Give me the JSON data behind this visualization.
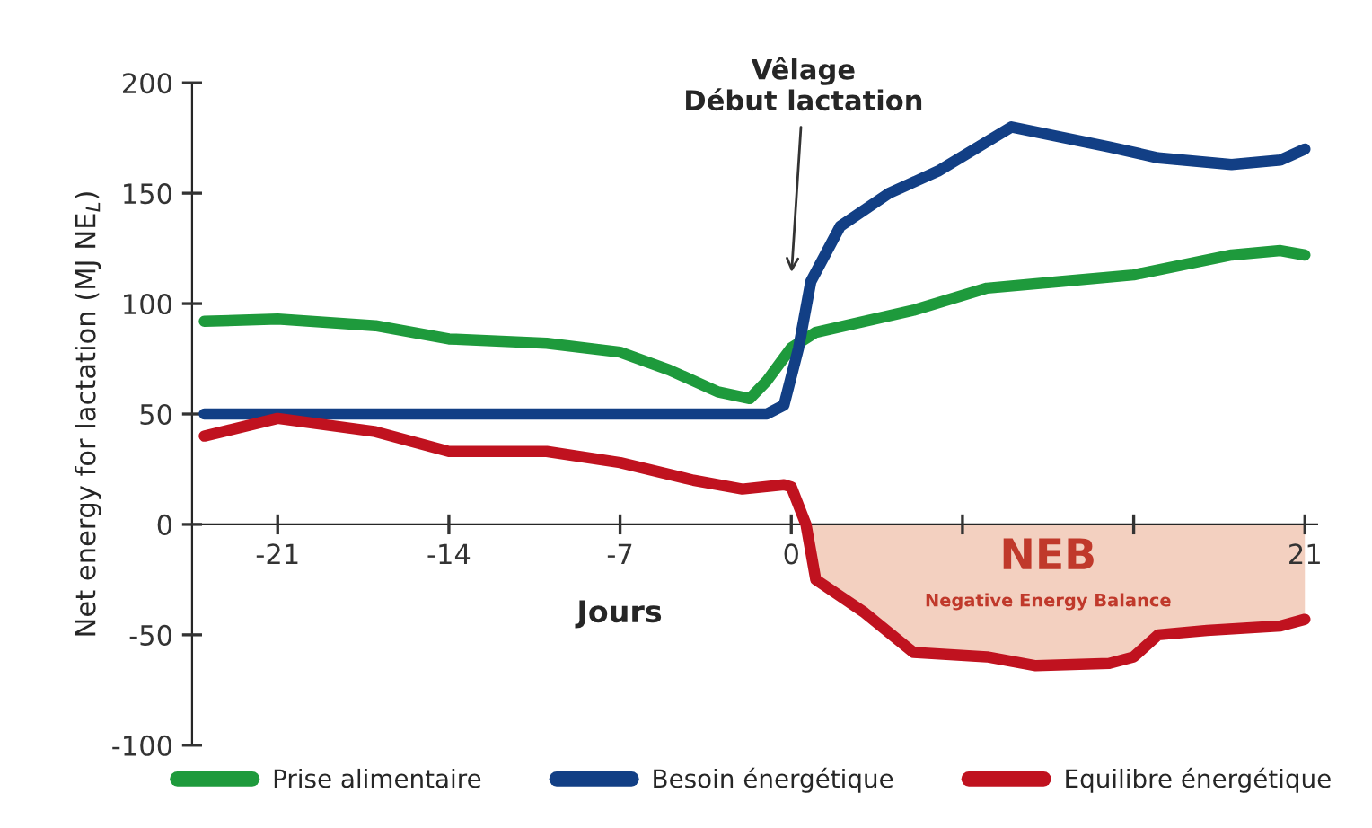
{
  "chart_data": {
    "type": "line",
    "xlabel": "Jours",
    "ylabel": "Net energy for lactation (MJ NE$_{L}$)",
    "xlim": [
      -24.5,
      21.5
    ],
    "xticks": [
      -21,
      -14,
      -7,
      0,
      {
        "value": 7,
        "label": null
      },
      {
        "value": 14,
        "label": null
      },
      21
    ],
    "ylim": [
      -100,
      200
    ],
    "yticks": [
      -100,
      -50,
      0,
      50,
      100,
      150,
      200
    ],
    "grid": false,
    "legend": "bottom",
    "line_style": "solid",
    "marker": "none",
    "series": [
      {
        "type": "area",
        "color": "#f3d0c0",
        "x": [
          0.6,
          1,
          3,
          5,
          8,
          10,
          13,
          14,
          15,
          17,
          20,
          21
        ],
        "values": [
          0,
          -25,
          -40,
          -58,
          -60,
          -64,
          -63,
          -60,
          -50,
          -48,
          -46,
          -43
        ]
      },
      {
        "name": "Prise alimentaire",
        "color": "#1e9a3c",
        "x": [
          -24,
          -21,
          -17,
          -14,
          -10,
          -7,
          -5,
          -3,
          -1.7,
          -1,
          0,
          1,
          5,
          8,
          11,
          14,
          18,
          20,
          21
        ],
        "values": [
          92,
          93,
          90,
          84,
          82,
          78,
          70,
          60,
          57,
          65,
          80,
          87,
          97,
          107,
          110,
          113,
          122,
          124,
          122
        ]
      },
      {
        "name": "Besoin énergétique",
        "color": "#123f85",
        "x": [
          -24,
          -10,
          -1,
          -0.3,
          0.3,
          0.8,
          2,
          4,
          6,
          9,
          13,
          15,
          18,
          20,
          21
        ],
        "values": [
          50,
          50,
          50,
          54,
          80,
          110,
          135,
          150,
          160,
          180,
          171,
          166,
          163,
          165,
          170
        ]
      },
      {
        "name": "Equilibre énergétique",
        "color": "#c0121f",
        "x": [
          -24,
          -21,
          -17,
          -14,
          -10,
          -7,
          -4,
          -2,
          -0.3,
          0,
          0.6,
          1,
          3,
          5,
          8,
          10,
          13,
          14,
          15,
          17,
          20,
          21
        ],
        "values": [
          40,
          48,
          42,
          33,
          33,
          28,
          20,
          16,
          18,
          17,
          0,
          -25,
          -40,
          -58,
          -60,
          -64,
          -63,
          -60,
          -50,
          -48,
          -46,
          -43
        ]
      }
    ],
    "annotations": [
      "Vêlage\nDébut lactation",
      "NEB",
      "Negative Energy Balance"
    ]
  }
}
